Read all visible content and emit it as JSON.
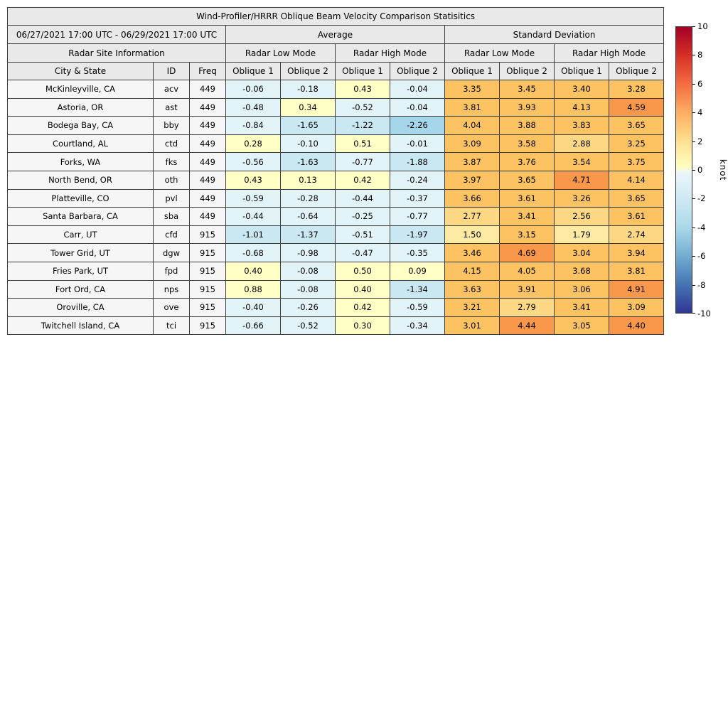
{
  "table": {
    "title": "Wind-Profiler/HRRR Oblique Beam Velocity Comparison Statisitics",
    "period": "06/27/2021 17:00 UTC - 06/29/2021 17:00 UTC",
    "groups": [
      "Average",
      "Standard Deviation"
    ],
    "site_info_label": "Radar Site Information",
    "modes": [
      "Radar Low Mode",
      "Radar High Mode",
      "Radar Low Mode",
      "Radar High Mode"
    ],
    "site_columns": [
      "City & State",
      "ID",
      "Freq"
    ],
    "oblique_labels": [
      "Oblique 1",
      "Oblique 2",
      "Oblique 1",
      "Oblique 2",
      "Oblique 1",
      "Oblique 2",
      "Oblique 1",
      "Oblique 2"
    ]
  },
  "colorbar": {
    "unit": "knot",
    "min": -10,
    "max": 10,
    "ticks": [
      "10",
      "8",
      "6",
      "4",
      "2",
      "0",
      "-2",
      "-4",
      "-6",
      "-8",
      "-10"
    ],
    "gradient_stops": [
      {
        "value": 10,
        "color": "#a50026"
      },
      {
        "value": 8,
        "color": "#d73027"
      },
      {
        "value": 6,
        "color": "#f46d43"
      },
      {
        "value": 4,
        "color": "#fdae61"
      },
      {
        "value": 2,
        "color": "#fee090"
      },
      {
        "value": 0.2,
        "color": "#ffffc3"
      },
      {
        "value": -0.2,
        "color": "#eaf6fa"
      },
      {
        "value": -2,
        "color": "#cfe9f3"
      },
      {
        "value": -4,
        "color": "#abd9e9"
      },
      {
        "value": -6,
        "color": "#74add1"
      },
      {
        "value": -8,
        "color": "#4575b4"
      },
      {
        "value": -10,
        "color": "#313695"
      }
    ],
    "cell_bins": [
      {
        "min": -10,
        "max": -4,
        "color": "#74add1"
      },
      {
        "min": -4,
        "max": -3,
        "color": "#8cc4e0"
      },
      {
        "min": -3,
        "max": -2,
        "color": "#a6d6ea"
      },
      {
        "min": -2,
        "max": -1,
        "color": "#c9e8f2"
      },
      {
        "min": -1,
        "max": 0,
        "color": "#e3f4f9"
      },
      {
        "min": 0,
        "max": 1,
        "color": "#ffffc6"
      },
      {
        "min": 1,
        "max": 2,
        "color": "#ffeaa4"
      },
      {
        "min": 2,
        "max": 3,
        "color": "#fed884"
      },
      {
        "min": 3,
        "max": 4.25,
        "color": "#fdc262"
      },
      {
        "min": 4.25,
        "max": 6,
        "color": "#f9984b"
      },
      {
        "min": 6,
        "max": 10.01,
        "color": "#f46d43"
      }
    ]
  },
  "chart_data": {
    "type": "heatmap",
    "title": "Wind-Profiler/HRRR Oblique Beam Velocity Comparison Statisitics",
    "subtitle": "06/27/2021 17:00 UTC - 06/29/2021 17:00 UTC",
    "unit": "knot",
    "color_range": [
      -10,
      10
    ],
    "legend_position": "right",
    "columns": [
      "Average Radar Low Mode Oblique 1",
      "Average Radar Low Mode Oblique 2",
      "Average Radar High Mode Oblique 1",
      "Average Radar High Mode Oblique 2",
      "Standard Deviation Radar Low Mode Oblique 1",
      "Standard Deviation Radar Low Mode Oblique 2",
      "Standard Deviation Radar High Mode Oblique 1",
      "Standard Deviation Radar High Mode Oblique 2"
    ],
    "rows": [
      {
        "city": "McKinleyville, CA",
        "id": "acv",
        "freq": "449",
        "values": [
          "-0.06",
          "-0.18",
          "0.43",
          "-0.04",
          "3.35",
          "3.45",
          "3.40",
          "3.28"
        ]
      },
      {
        "city": "Astoria, OR",
        "id": "ast",
        "freq": "449",
        "values": [
          "-0.48",
          "0.34",
          "-0.52",
          "-0.04",
          "3.81",
          "3.93",
          "4.13",
          "4.59"
        ]
      },
      {
        "city": "Bodega Bay, CA",
        "id": "bby",
        "freq": "449",
        "values": [
          "-0.84",
          "-1.65",
          "-1.22",
          "-2.26",
          "4.04",
          "3.88",
          "3.83",
          "3.65"
        ]
      },
      {
        "city": "Courtland, AL",
        "id": "ctd",
        "freq": "449",
        "values": [
          "0.28",
          "-0.10",
          "0.51",
          "-0.01",
          "3.09",
          "3.58",
          "2.88",
          "3.25"
        ]
      },
      {
        "city": "Forks, WA",
        "id": "fks",
        "freq": "449",
        "values": [
          "-0.56",
          "-1.63",
          "-0.77",
          "-1.88",
          "3.87",
          "3.76",
          "3.54",
          "3.75"
        ]
      },
      {
        "city": "North Bend, OR",
        "id": "oth",
        "freq": "449",
        "values": [
          "0.43",
          "0.13",
          "0.42",
          "-0.24",
          "3.97",
          "3.65",
          "4.71",
          "4.14"
        ]
      },
      {
        "city": "Platteville, CO",
        "id": "pvl",
        "freq": "449",
        "values": [
          "-0.59",
          "-0.28",
          "-0.44",
          "-0.37",
          "3.66",
          "3.61",
          "3.26",
          "3.65"
        ]
      },
      {
        "city": "Santa Barbara, CA",
        "id": "sba",
        "freq": "449",
        "values": [
          "-0.44",
          "-0.64",
          "-0.25",
          "-0.77",
          "2.77",
          "3.41",
          "2.56",
          "3.61"
        ]
      },
      {
        "city": "Carr, UT",
        "id": "cfd",
        "freq": "915",
        "values": [
          "-1.01",
          "-1.37",
          "-0.51",
          "-1.97",
          "1.50",
          "3.15",
          "1.79",
          "2.74"
        ]
      },
      {
        "city": "Tower Grid, UT",
        "id": "dgw",
        "freq": "915",
        "values": [
          "-0.68",
          "-0.98",
          "-0.47",
          "-0.35",
          "3.46",
          "4.69",
          "3.04",
          "3.94"
        ]
      },
      {
        "city": "Fries Park, UT",
        "id": "fpd",
        "freq": "915",
        "values": [
          "0.40",
          "-0.08",
          "0.50",
          "0.09",
          "4.15",
          "4.05",
          "3.68",
          "3.81"
        ]
      },
      {
        "city": "Fort Ord, CA",
        "id": "nps",
        "freq": "915",
        "values": [
          "0.88",
          "-0.08",
          "0.40",
          "-1.34",
          "3.63",
          "3.91",
          "3.06",
          "4.91"
        ]
      },
      {
        "city": "Oroville, CA",
        "id": "ove",
        "freq": "915",
        "values": [
          "-0.40",
          "-0.26",
          "0.42",
          "-0.59",
          "3.21",
          "2.79",
          "3.41",
          "3.09"
        ]
      },
      {
        "city": "Twitchell Island, CA",
        "id": "tci",
        "freq": "915",
        "values": [
          "-0.66",
          "-0.52",
          "0.30",
          "-0.34",
          "3.01",
          "4.44",
          "3.05",
          "4.40"
        ]
      }
    ]
  }
}
